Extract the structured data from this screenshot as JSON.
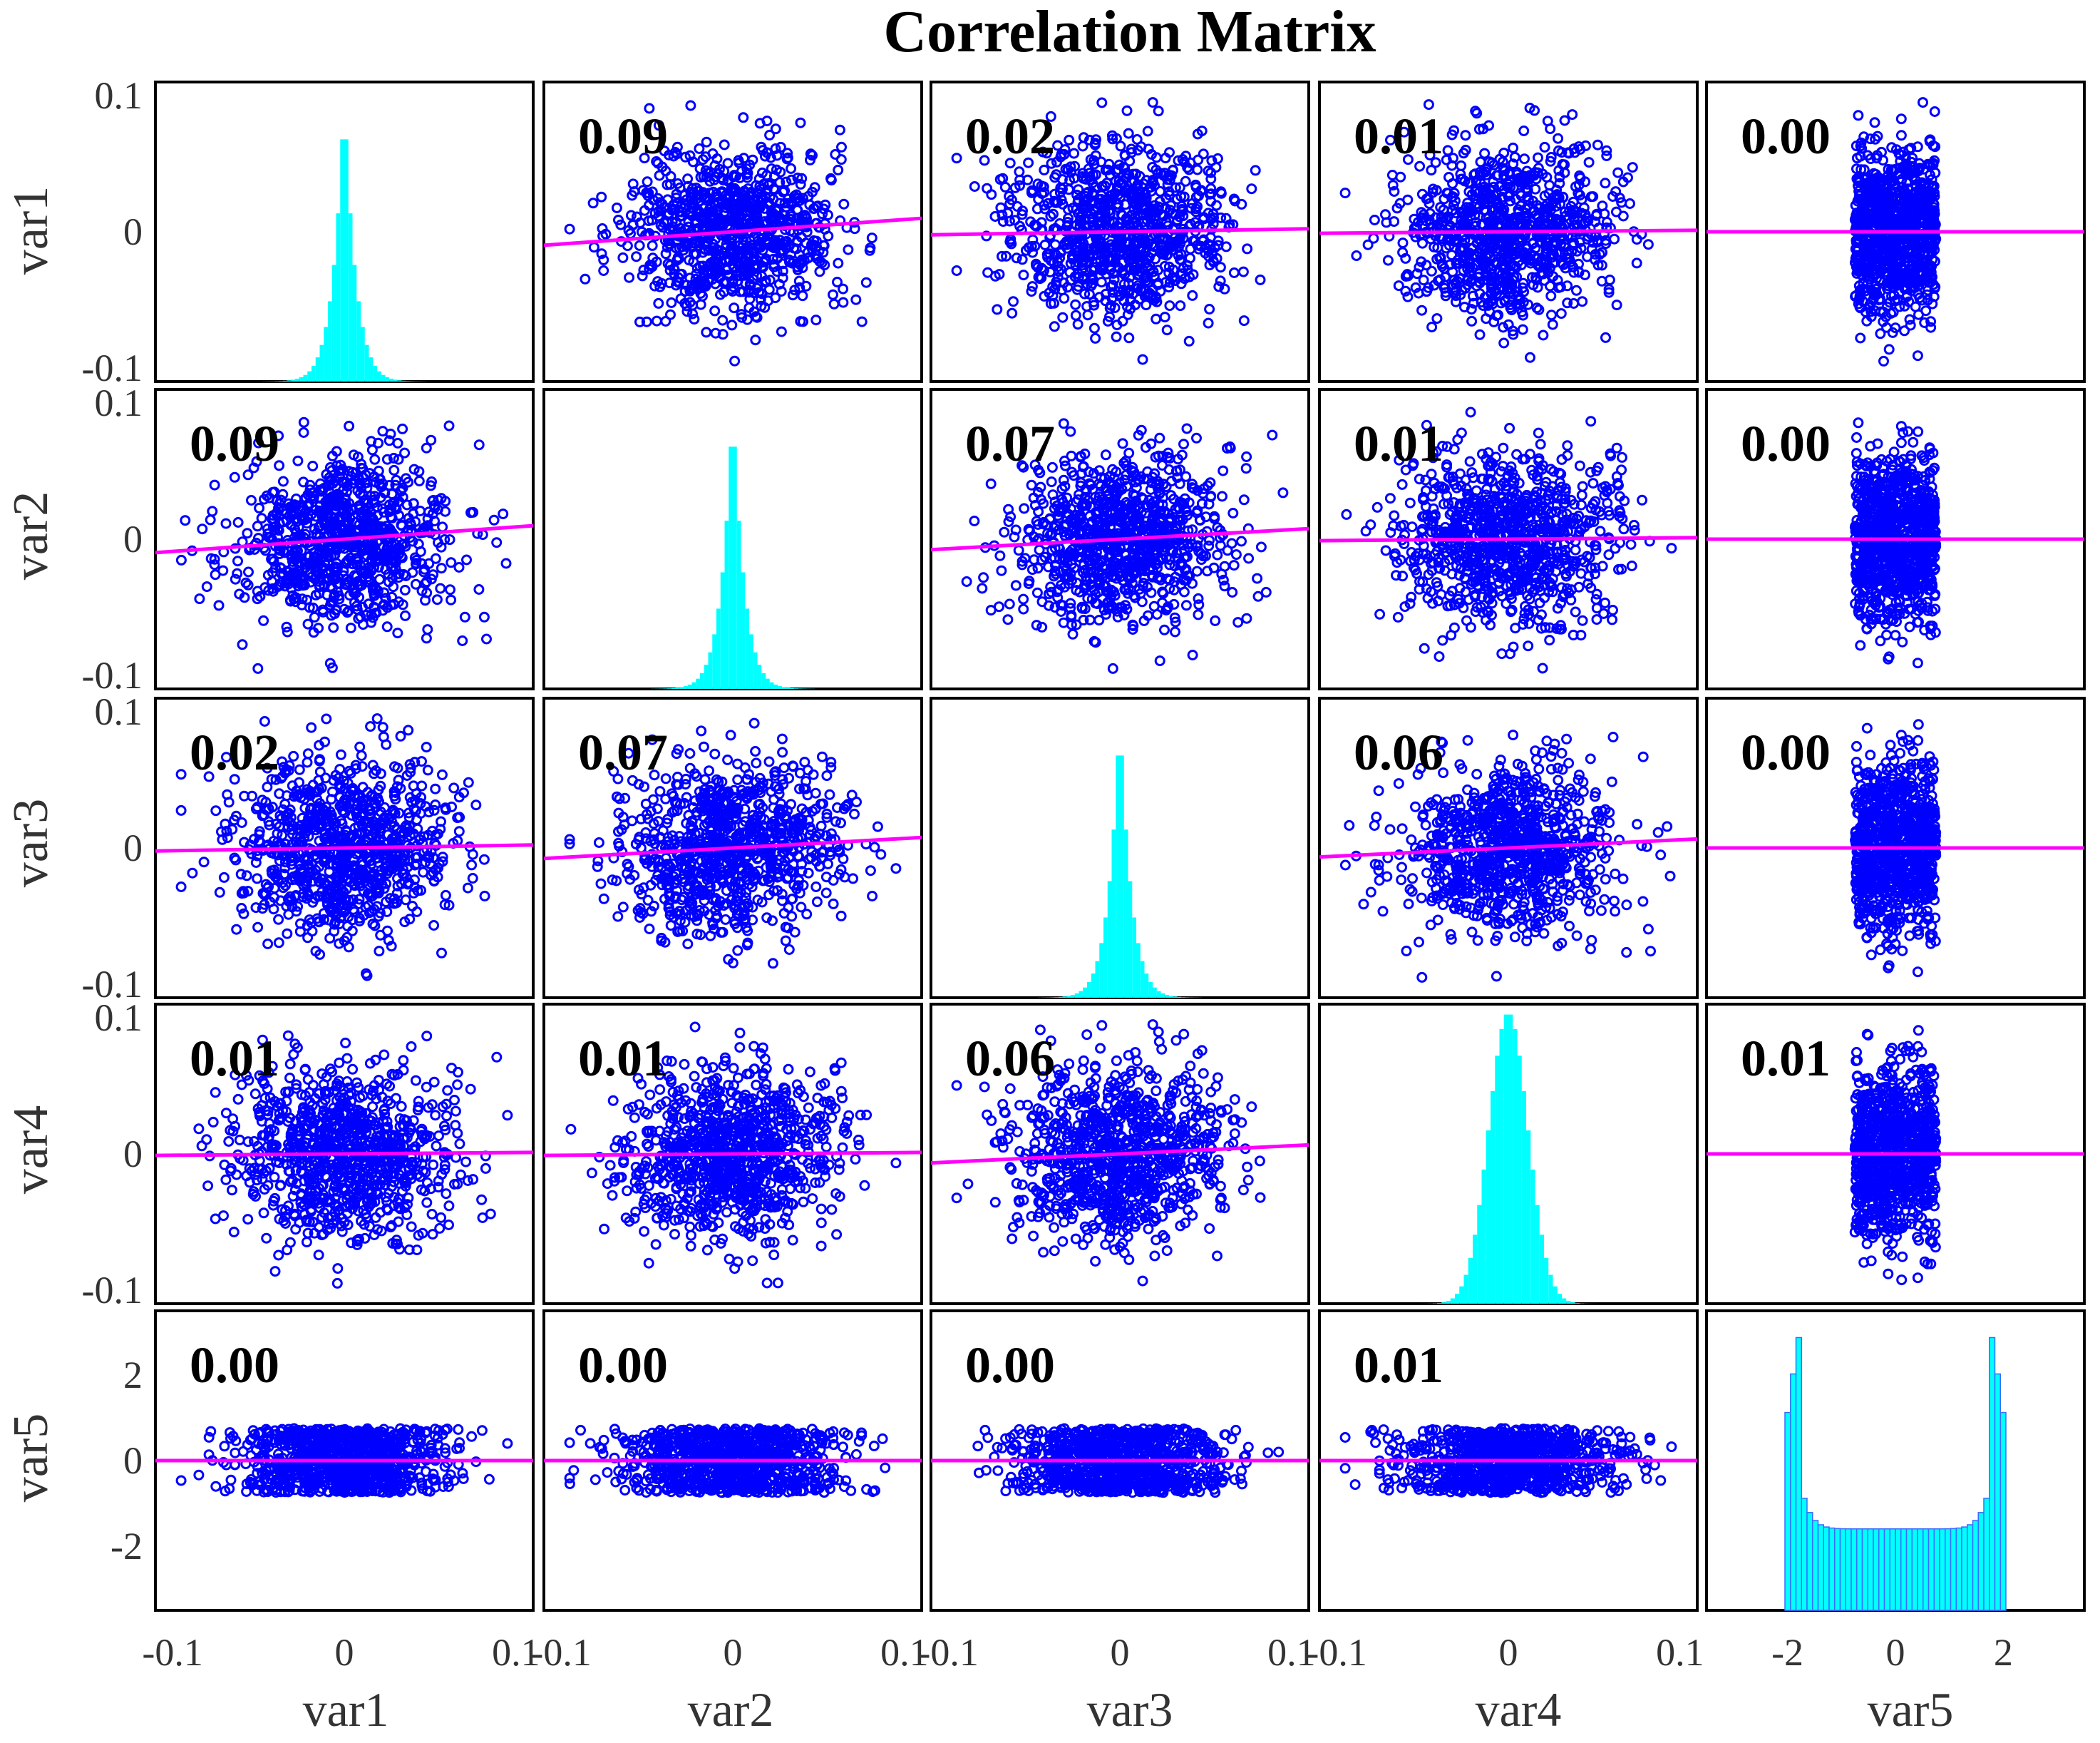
{
  "chart_data": {
    "type": "scatter-matrix",
    "title": "Correlation Matrix",
    "variables": [
      "var1",
      "var2",
      "var3",
      "var4",
      "var5"
    ],
    "row_labels": [
      "var1",
      "var2",
      "var3",
      "var4",
      "var5"
    ],
    "column_labels": [
      "var1",
      "var2",
      "var3",
      "var4",
      "var5"
    ],
    "x_tick_labels": [
      [
        "-0.1",
        "0",
        "0.1"
      ],
      [
        "-0.1",
        "0",
        "0.1"
      ],
      [
        "-0.1",
        "0",
        "0.1"
      ],
      [
        "-0.1",
        "0",
        "0.1"
      ],
      [
        "-2",
        "0",
        "2"
      ]
    ],
    "y_tick_labels": [
      [
        "0.1",
        "0",
        "-0.1"
      ],
      [
        "0.1",
        "0",
        "-0.1"
      ],
      [
        "0.1",
        "0",
        "-0.1"
      ],
      [
        "0.1",
        "0",
        "-0.1"
      ],
      [
        "2",
        "0",
        "-2"
      ]
    ],
    "correlations": [
      [
        null,
        "0.09",
        "0.02",
        "0.01",
        "0.00"
      ],
      [
        "0.09",
        null,
        "0.07",
        "0.01",
        "0.00"
      ],
      [
        "0.02",
        "0.07",
        null,
        "0.06",
        "0.00"
      ],
      [
        "0.01",
        "0.01",
        "0.06",
        null,
        "0.01"
      ],
      [
        "0.00",
        "0.00",
        "0.00",
        "0.01",
        null
      ]
    ],
    "axis_ranges": [
      [
        -0.11,
        0.11
      ],
      [
        -0.11,
        0.11
      ],
      [
        -0.11,
        0.11
      ],
      [
        -0.11,
        0.11
      ],
      [
        -3.5,
        3.5
      ]
    ],
    "diagonal": "histogram",
    "off_diagonal": "scatter with least-squares fit line",
    "colors": {
      "scatter": "#0000ff",
      "histogram": "#00ffff",
      "histogram_edge": "#3a6cff",
      "fit_line": "#ff00ff",
      "frame": "#000000"
    }
  }
}
